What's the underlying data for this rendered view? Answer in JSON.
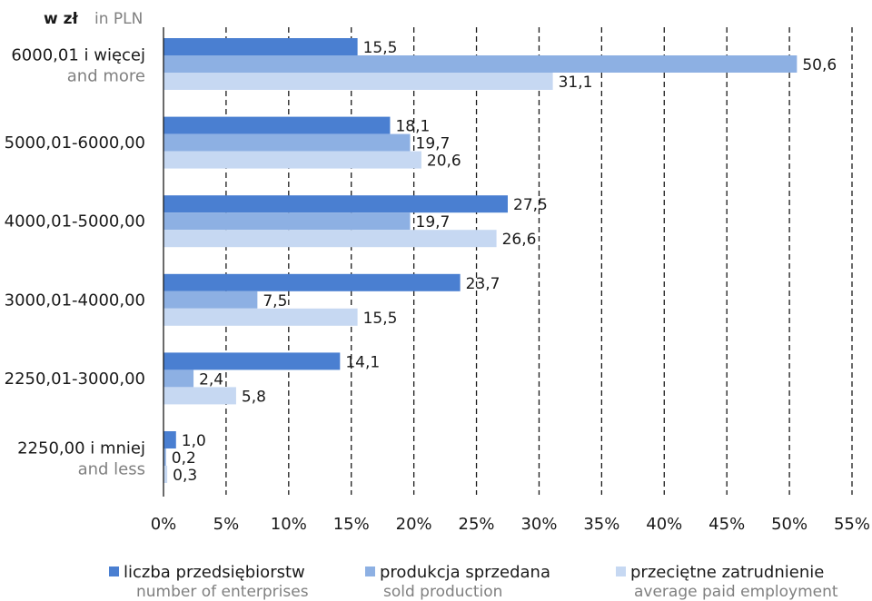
{
  "chart_data": {
    "type": "bar",
    "orientation": "horizontal",
    "unit_label": {
      "pl": "w zł",
      "en": "in PLN"
    },
    "categories": [
      {
        "pl": "6000,01 i więcej",
        "en": "and more"
      },
      {
        "pl": "5000,01-6000,00",
        "en": ""
      },
      {
        "pl": "4000,01-5000,00",
        "en": ""
      },
      {
        "pl": "3000,01-4000,00",
        "en": ""
      },
      {
        "pl": "2250,01-3000,00",
        "en": ""
      },
      {
        "pl": "2250,00 i mniej",
        "en": "and less"
      }
    ],
    "series": [
      {
        "name": "liczba przedsiębiorstw",
        "name_en": "number of enterprises",
        "color": "#4a7fd1",
        "values": [
          15.5,
          18.1,
          27.5,
          23.7,
          14.1,
          1.0
        ],
        "labels": [
          "15,5",
          "18,1",
          "27,5",
          "23,7",
          "14,1",
          "1,0"
        ]
      },
      {
        "name": "produkcja sprzedana",
        "name_en": "sold production",
        "color": "#8db0e3",
        "values": [
          50.6,
          19.7,
          19.7,
          7.5,
          2.4,
          0.2
        ],
        "labels": [
          "50,6",
          "19,7",
          "19,7",
          "7,5",
          "2,4",
          "0,2"
        ]
      },
      {
        "name": "przeciętne zatrudnienie",
        "name_en": "average paid employment",
        "color": "#c6d8f2",
        "values": [
          31.1,
          20.6,
          26.6,
          15.5,
          5.8,
          0.3
        ],
        "labels": [
          "31,1",
          "20,6",
          "26,6",
          "15,5",
          "5,8",
          "0,3"
        ]
      }
    ],
    "xlim": [
      0,
      55
    ],
    "x_ticks": [
      0,
      5,
      10,
      15,
      20,
      25,
      30,
      35,
      40,
      45,
      50,
      55
    ],
    "x_tick_labels": [
      "0%",
      "5%",
      "10%",
      "15%",
      "20%",
      "25%",
      "30%",
      "35%",
      "40%",
      "45%",
      "50%",
      "55%"
    ],
    "grid": "vertical-dashed",
    "legend": "bottom"
  }
}
